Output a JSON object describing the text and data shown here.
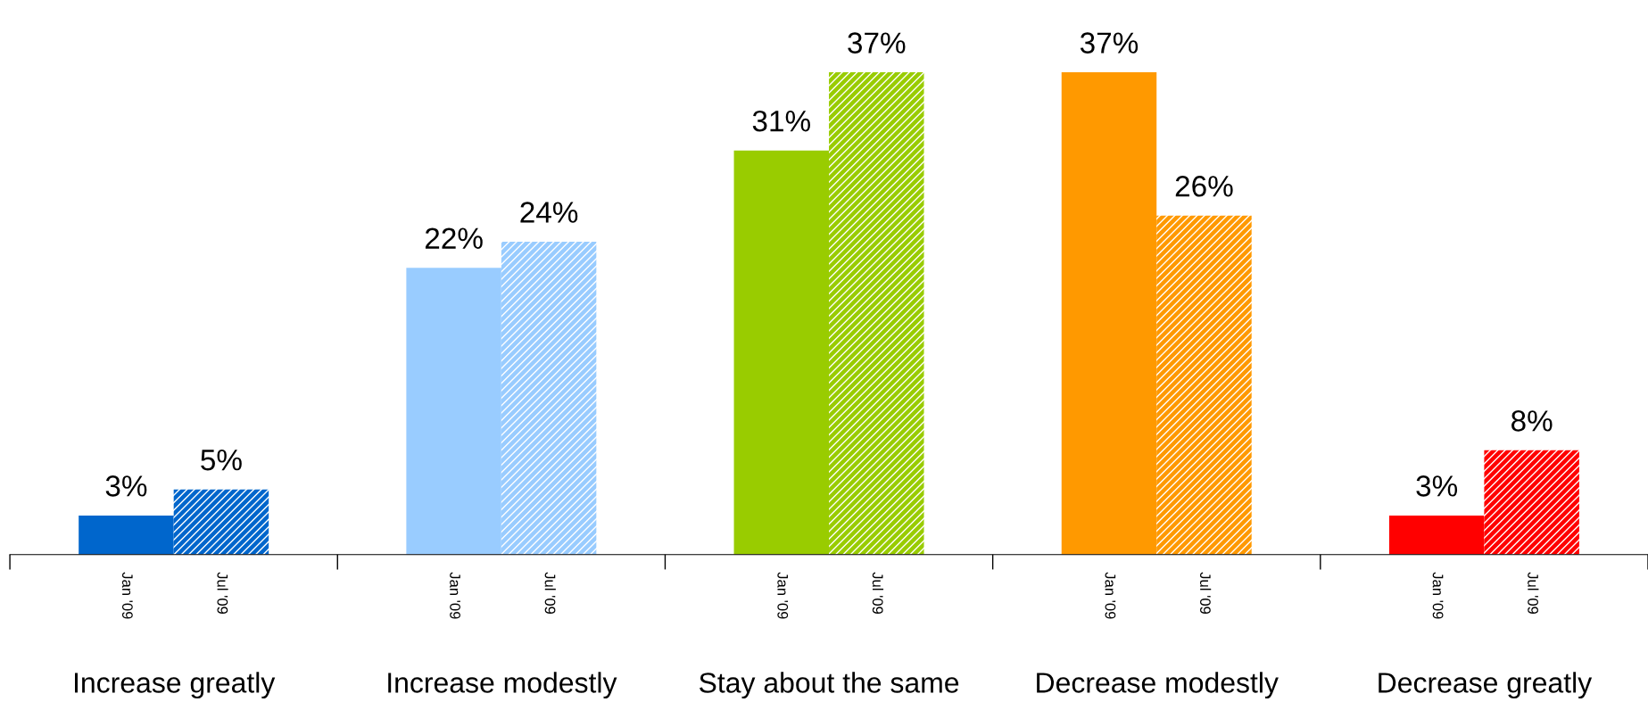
{
  "chart_data": {
    "type": "bar",
    "categories": [
      "Increase greatly",
      "Increase modestly",
      "Stay about the same",
      "Decrease modestly",
      "Decrease greatly"
    ],
    "series": [
      {
        "name": "Jan '09",
        "colors": [
          "#0066cc",
          "#99ccff",
          "#99cc00",
          "#ff9900",
          "#ff0000"
        ],
        "values": [
          3,
          22,
          31,
          37,
          3
        ],
        "value_labels": [
          "3%",
          "22%",
          "31%",
          "37%",
          "3%"
        ]
      },
      {
        "name": "Jul '09",
        "colors": [
          "#0066cc",
          "#99ccff",
          "#99cc00",
          "#ff9900",
          "#ff0000"
        ],
        "values": [
          5,
          24,
          37,
          26,
          8
        ],
        "value_labels": [
          "5%",
          "24%",
          "37%",
          "26%",
          "8%"
        ]
      }
    ],
    "grid": false,
    "legend": false
  }
}
